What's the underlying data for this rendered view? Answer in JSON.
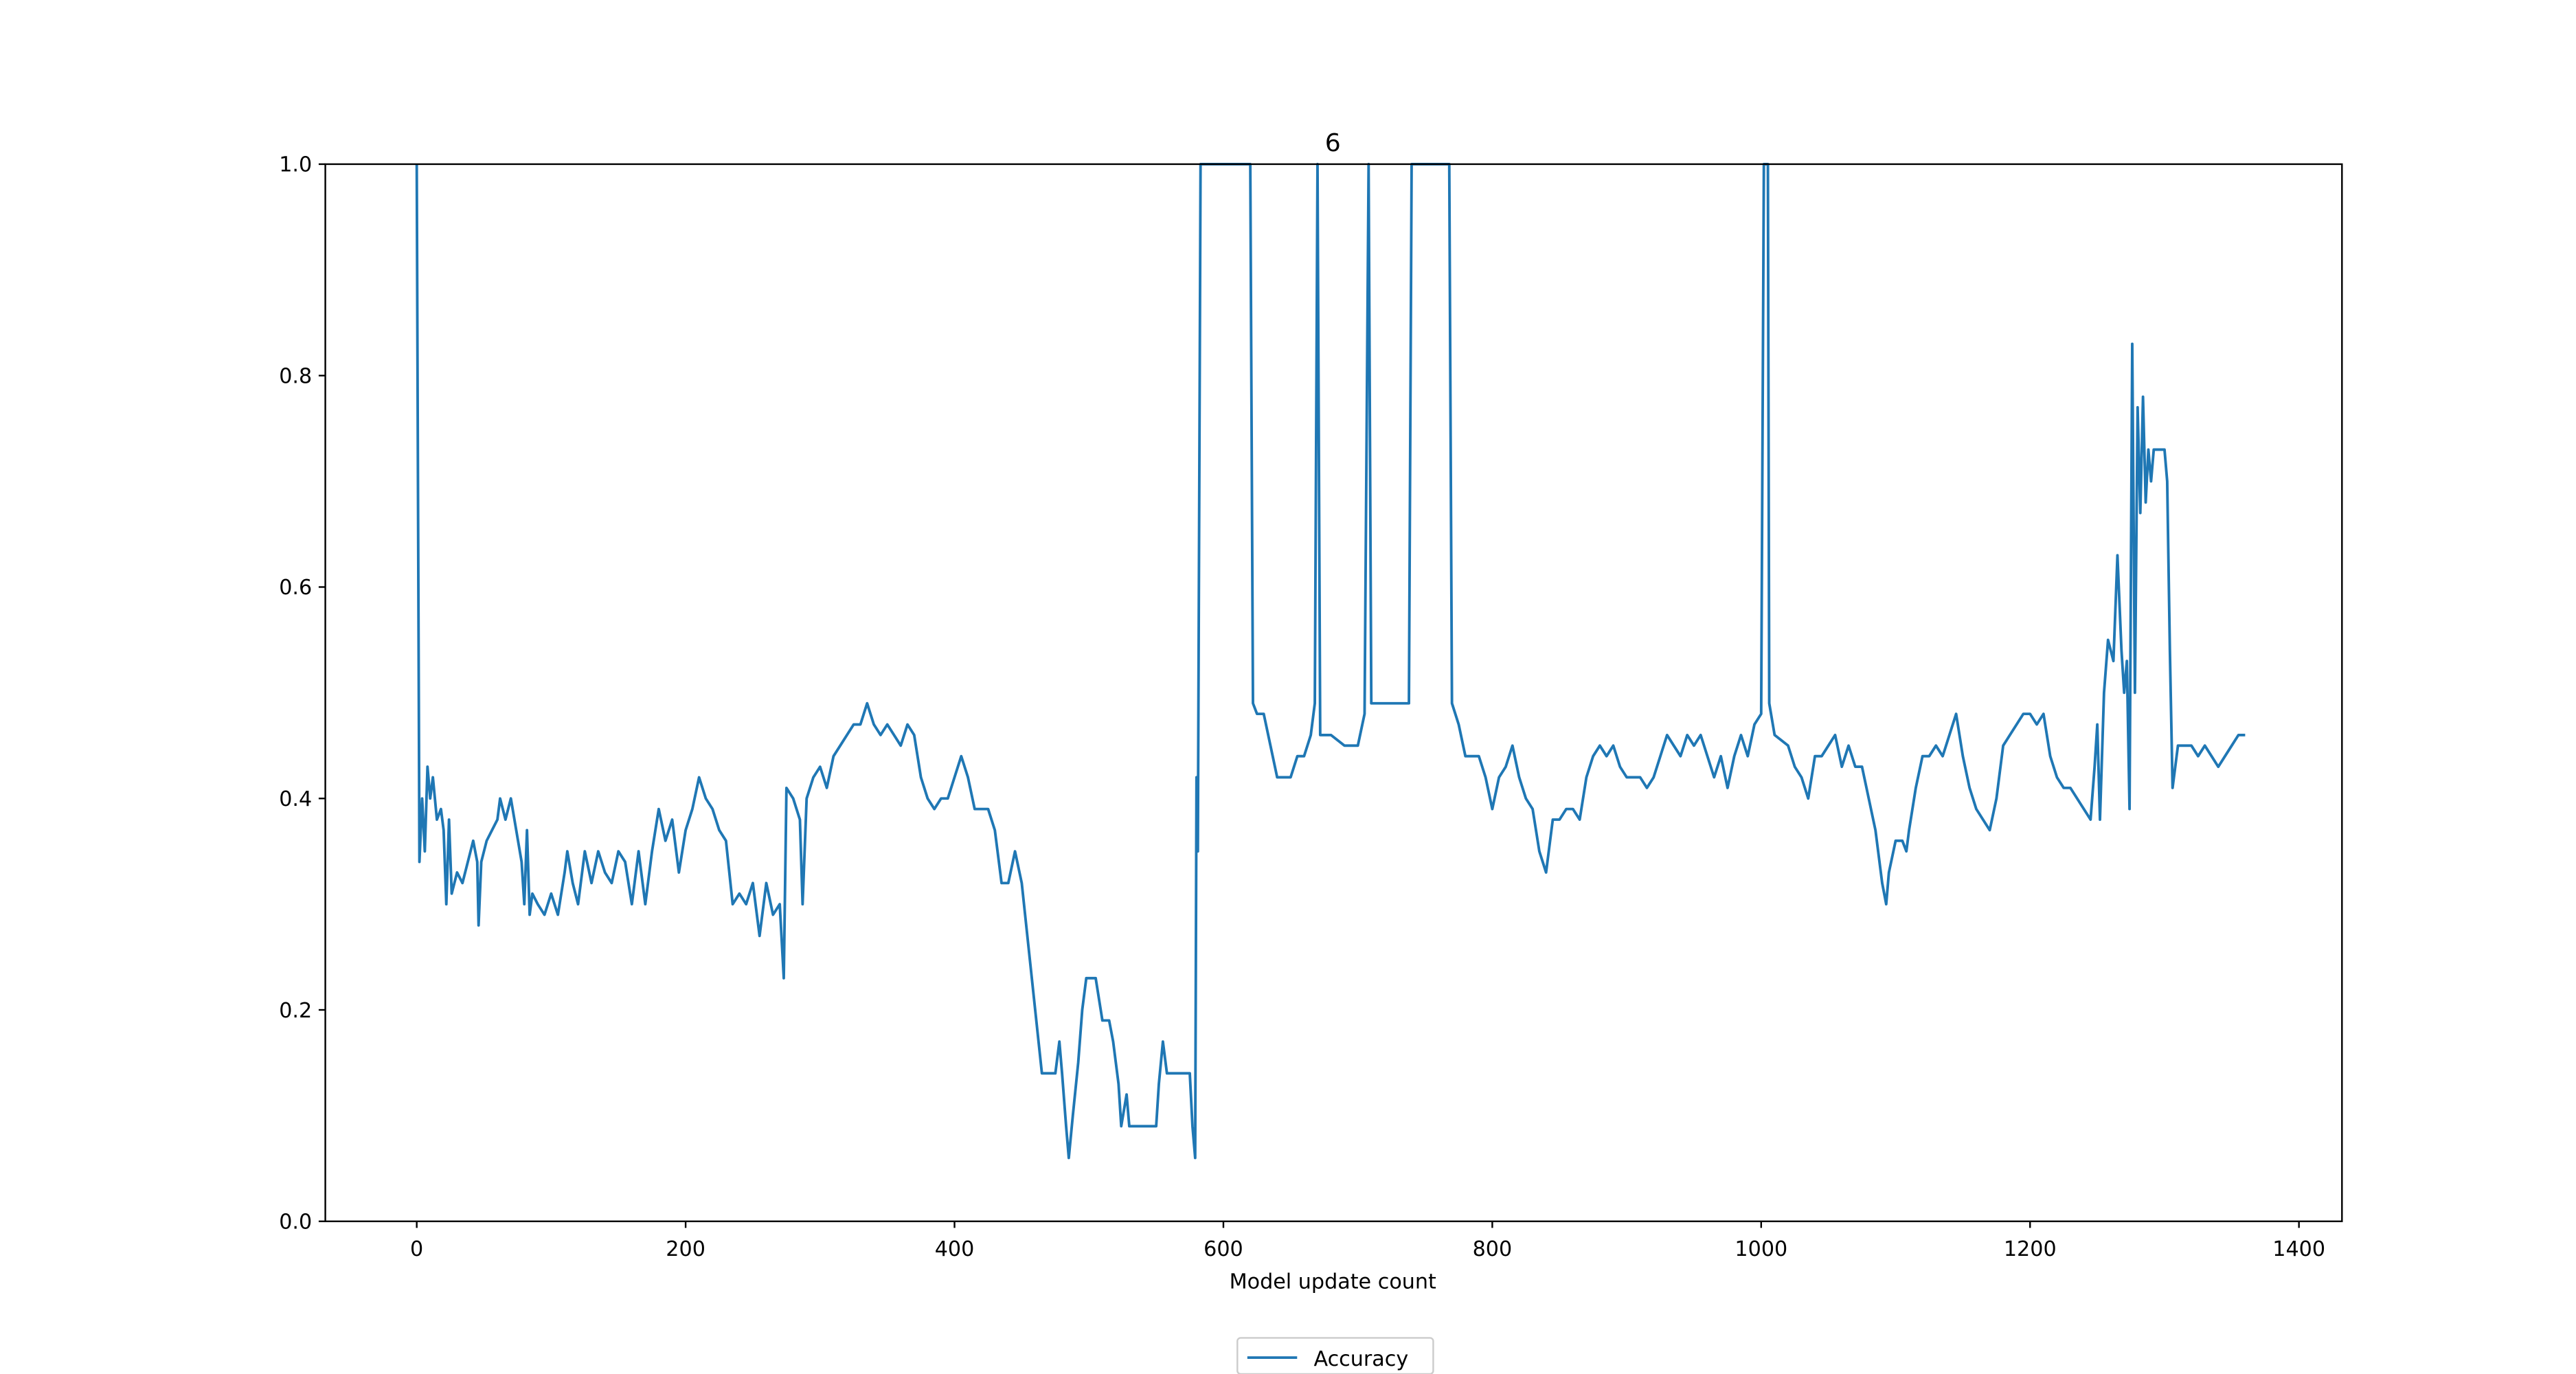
{
  "chart_data": {
    "type": "line",
    "title": "6",
    "x_label": "Model update count",
    "xlim": [
      -68,
      1432
    ],
    "ylim": [
      0,
      1
    ],
    "xticks": [
      0,
      200,
      400,
      600,
      800,
      1000,
      1200,
      1400
    ],
    "yticks": [
      {
        "value": 0,
        "label": "0.0"
      },
      0.2,
      0.4,
      0.6,
      0.8,
      {
        "value": 1,
        "label": "1.0"
      }
    ],
    "legend": "lower center",
    "x": [
      0,
      2,
      4,
      6,
      8,
      10,
      12,
      15,
      18,
      20,
      22,
      24,
      26,
      30,
      34,
      38,
      42,
      45,
      46,
      48,
      52,
      56,
      60,
      62,
      66,
      70,
      74,
      78,
      80,
      82,
      84,
      86,
      90,
      95,
      100,
      105,
      110,
      112,
      116,
      120,
      125,
      130,
      135,
      140,
      145,
      150,
      155,
      160,
      165,
      170,
      175,
      180,
      185,
      190,
      195,
      200,
      205,
      210,
      215,
      220,
      225,
      230,
      235,
      240,
      245,
      250,
      255,
      260,
      265,
      270,
      273,
      275,
      280,
      285,
      287,
      290,
      295,
      300,
      305,
      310,
      315,
      320,
      325,
      330,
      335,
      340,
      345,
      350,
      355,
      360,
      365,
      370,
      375,
      380,
      385,
      390,
      395,
      400,
      405,
      410,
      415,
      425,
      430,
      435,
      440,
      445,
      450,
      455,
      460,
      465,
      470,
      475,
      478,
      480,
      483,
      485,
      488,
      492,
      495,
      498,
      505,
      510,
      515,
      518,
      520,
      522,
      524,
      528,
      530,
      540,
      550,
      552,
      555,
      558,
      570,
      575,
      577,
      579,
      580,
      581,
      583,
      620,
      622,
      625,
      630,
      635,
      640,
      645,
      650,
      655,
      660,
      665,
      668,
      670,
      672,
      680,
      690,
      700,
      705,
      708,
      710,
      720,
      730,
      738,
      740,
      768,
      770,
      775,
      780,
      790,
      795,
      800,
      805,
      810,
      815,
      820,
      825,
      830,
      835,
      840,
      845,
      850,
      855,
      860,
      865,
      870,
      875,
      880,
      885,
      890,
      895,
      900,
      910,
      915,
      920,
      925,
      930,
      935,
      940,
      945,
      950,
      955,
      960,
      965,
      970,
      975,
      980,
      985,
      990,
      995,
      1000,
      1002,
      1005,
      1006,
      1010,
      1020,
      1025,
      1030,
      1035,
      1040,
      1045,
      1050,
      1055,
      1060,
      1065,
      1070,
      1075,
      1080,
      1085,
      1090,
      1093,
      1095,
      1100,
      1105,
      1108,
      1110,
      1115,
      1120,
      1125,
      1130,
      1135,
      1140,
      1145,
      1150,
      1155,
      1160,
      1165,
      1170,
      1175,
      1180,
      1185,
      1190,
      1195,
      1200,
      1205,
      1210,
      1215,
      1220,
      1225,
      1230,
      1235,
      1240,
      1245,
      1248,
      1250,
      1252,
      1255,
      1258,
      1262,
      1265,
      1268,
      1270,
      1272,
      1274,
      1276,
      1278,
      1280,
      1282,
      1284,
      1286,
      1288,
      1290,
      1292,
      1300,
      1302,
      1304,
      1306,
      1310,
      1320,
      1325,
      1330,
      1335,
      1340,
      1345,
      1350,
      1355,
      1360
    ],
    "series": [
      {
        "name": "Accuracy",
        "color": "#1f77b4",
        "values": [
          1.0,
          0.34,
          0.4,
          0.35,
          0.43,
          0.4,
          0.42,
          0.38,
          0.39,
          0.37,
          0.3,
          0.38,
          0.31,
          0.33,
          0.32,
          0.34,
          0.36,
          0.34,
          0.28,
          0.34,
          0.36,
          0.37,
          0.38,
          0.4,
          0.38,
          0.4,
          0.37,
          0.34,
          0.3,
          0.37,
          0.29,
          0.31,
          0.3,
          0.29,
          0.31,
          0.29,
          0.33,
          0.35,
          0.32,
          0.3,
          0.35,
          0.32,
          0.35,
          0.33,
          0.32,
          0.35,
          0.34,
          0.3,
          0.35,
          0.3,
          0.35,
          0.39,
          0.36,
          0.38,
          0.33,
          0.37,
          0.39,
          0.42,
          0.4,
          0.39,
          0.37,
          0.36,
          0.3,
          0.31,
          0.3,
          0.32,
          0.27,
          0.32,
          0.29,
          0.3,
          0.23,
          0.41,
          0.4,
          0.38,
          0.3,
          0.4,
          0.42,
          0.43,
          0.41,
          0.44,
          0.45,
          0.46,
          0.47,
          0.47,
          0.49,
          0.47,
          0.46,
          0.47,
          0.46,
          0.45,
          0.47,
          0.46,
          0.42,
          0.4,
          0.39,
          0.4,
          0.4,
          0.42,
          0.44,
          0.42,
          0.39,
          0.39,
          0.37,
          0.32,
          0.32,
          0.35,
          0.32,
          0.26,
          0.2,
          0.14,
          0.14,
          0.14,
          0.17,
          0.14,
          0.09,
          0.06,
          0.1,
          0.15,
          0.2,
          0.23,
          0.23,
          0.19,
          0.19,
          0.17,
          0.15,
          0.13,
          0.09,
          0.12,
          0.09,
          0.09,
          0.09,
          0.13,
          0.17,
          0.14,
          0.14,
          0.14,
          0.09,
          0.06,
          0.42,
          0.35,
          1.0,
          1.0,
          0.49,
          0.48,
          0.48,
          0.45,
          0.42,
          0.42,
          0.42,
          0.44,
          0.44,
          0.46,
          0.49,
          1.0,
          0.46,
          0.46,
          0.45,
          0.45,
          0.48,
          1.0,
          0.49,
          0.49,
          0.49,
          0.49,
          1.0,
          1.0,
          0.49,
          0.47,
          0.44,
          0.44,
          0.42,
          0.39,
          0.42,
          0.43,
          0.45,
          0.42,
          0.4,
          0.39,
          0.35,
          0.33,
          0.38,
          0.38,
          0.39,
          0.39,
          0.38,
          0.42,
          0.44,
          0.45,
          0.44,
          0.45,
          0.43,
          0.42,
          0.42,
          0.41,
          0.42,
          0.44,
          0.46,
          0.45,
          0.44,
          0.46,
          0.45,
          0.46,
          0.44,
          0.42,
          0.44,
          0.41,
          0.44,
          0.46,
          0.44,
          0.47,
          0.48,
          1.0,
          1.0,
          0.49,
          0.46,
          0.45,
          0.43,
          0.42,
          0.4,
          0.44,
          0.44,
          0.45,
          0.46,
          0.43,
          0.45,
          0.43,
          0.43,
          0.4,
          0.37,
          0.32,
          0.3,
          0.33,
          0.36,
          0.36,
          0.35,
          0.37,
          0.41,
          0.44,
          0.44,
          0.45,
          0.44,
          0.46,
          0.48,
          0.44,
          0.41,
          0.39,
          0.38,
          0.37,
          0.4,
          0.45,
          0.46,
          0.47,
          0.48,
          0.48,
          0.47,
          0.48,
          0.44,
          0.42,
          0.41,
          0.41,
          0.4,
          0.39,
          0.38,
          0.43,
          0.47,
          0.38,
          0.5,
          0.55,
          0.53,
          0.63,
          0.54,
          0.5,
          0.53,
          0.39,
          0.83,
          0.5,
          0.77,
          0.67,
          0.78,
          0.68,
          0.73,
          0.7,
          0.73,
          0.73,
          0.7,
          0.54,
          0.41,
          0.45,
          0.45,
          0.44,
          0.45,
          0.44,
          0.43,
          0.44,
          0.45,
          0.46,
          0.46
        ]
      }
    ]
  }
}
